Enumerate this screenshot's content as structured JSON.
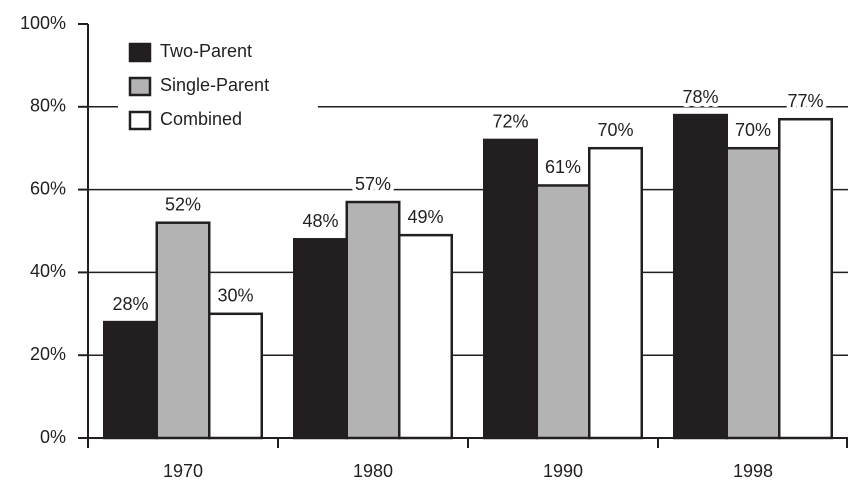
{
  "chart_data": {
    "type": "bar",
    "categories": [
      "1970",
      "1980",
      "1990",
      "1998"
    ],
    "series": [
      {
        "name": "Two-Parent",
        "color": "#231f20",
        "values": [
          28,
          48,
          72,
          78
        ],
        "value_labels": [
          "28%",
          "48%",
          "72%",
          "78%"
        ]
      },
      {
        "name": "Single-Parent",
        "color": "#b3b3b3",
        "values": [
          52,
          57,
          61,
          70
        ],
        "value_labels": [
          "52%",
          "57%",
          "61%",
          "70%"
        ]
      },
      {
        "name": "Combined",
        "color": "#ffffff",
        "values": [
          30,
          49,
          70,
          77
        ],
        "value_labels": [
          "30%",
          "49%",
          "70%",
          "77%"
        ]
      }
    ],
    "ylim": [
      0,
      100
    ],
    "yticks": [
      {
        "value": 0,
        "label": "0%"
      },
      {
        "value": 20,
        "label": "20%"
      },
      {
        "value": 40,
        "label": "40%"
      },
      {
        "value": 60,
        "label": "60%"
      },
      {
        "value": 80,
        "label": "80%"
      },
      {
        "value": 100,
        "label": "100%"
      }
    ],
    "grid": true,
    "legend": "upper left"
  }
}
